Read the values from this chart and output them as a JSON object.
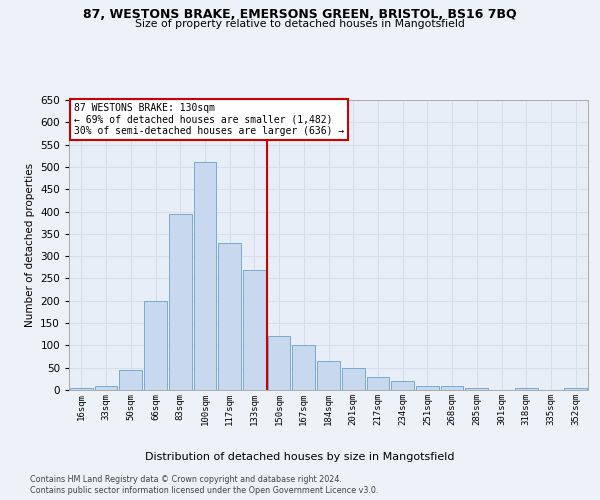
{
  "title_line1": "87, WESTONS BRAKE, EMERSONS GREEN, BRISTOL, BS16 7BQ",
  "title_line2": "Size of property relative to detached houses in Mangotsfield",
  "xlabel": "Distribution of detached houses by size in Mangotsfield",
  "ylabel": "Number of detached properties",
  "bar_color": "#c8d8ee",
  "bar_edge_color": "#7aaad0",
  "background_color": "#e8eef8",
  "grid_color": "#d8dee8",
  "fig_background": "#edf1f8",
  "categories": [
    "16sqm",
    "33sqm",
    "50sqm",
    "66sqm",
    "83sqm",
    "100sqm",
    "117sqm",
    "133sqm",
    "150sqm",
    "167sqm",
    "184sqm",
    "201sqm",
    "217sqm",
    "234sqm",
    "251sqm",
    "268sqm",
    "285sqm",
    "301sqm",
    "318sqm",
    "335sqm",
    "352sqm"
  ],
  "values": [
    5,
    10,
    45,
    200,
    395,
    510,
    330,
    270,
    120,
    100,
    65,
    50,
    30,
    20,
    10,
    10,
    5,
    0,
    5,
    0,
    5
  ],
  "vline_index": 7.5,
  "vline_color": "#cc0000",
  "annotation_text": "87 WESTONS BRAKE: 130sqm\n← 69% of detached houses are smaller (1,482)\n30% of semi-detached houses are larger (636) →",
  "annotation_box_facecolor": "#ffffff",
  "annotation_box_edgecolor": "#cc0000",
  "ylim": [
    0,
    650
  ],
  "yticks": [
    0,
    50,
    100,
    150,
    200,
    250,
    300,
    350,
    400,
    450,
    500,
    550,
    600,
    650
  ],
  "footnote_line1": "Contains HM Land Registry data © Crown copyright and database right 2024.",
  "footnote_line2": "Contains public sector information licensed under the Open Government Licence v3.0."
}
